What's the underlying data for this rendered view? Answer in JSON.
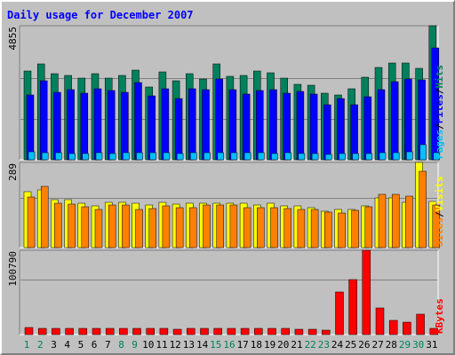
{
  "title": "Daily usage for December 2007",
  "colors": {
    "pages": "#00c0ff",
    "files": "#0000ff",
    "hits": "#00805c",
    "sites": "#ff8000",
    "visits": "#ffff00",
    "kbytes": "#ff0000",
    "weekend_label": "#00805c",
    "weekday_label": "#000000"
  },
  "chart_data": {
    "type": "bar",
    "categories": [
      "1",
      "2",
      "3",
      "4",
      "5",
      "6",
      "7",
      "8",
      "9",
      "10",
      "11",
      "12",
      "13",
      "14",
      "15",
      "16",
      "17",
      "18",
      "19",
      "20",
      "21",
      "22",
      "23",
      "24",
      "25",
      "26",
      "27",
      "28",
      "29",
      "30",
      "31"
    ],
    "weekend_days": [
      "1",
      "2",
      "8",
      "9",
      "15",
      "16",
      "22",
      "23",
      "29",
      "30"
    ],
    "panels": [
      {
        "id": "usage",
        "ymax_label": "4855",
        "ylim": [
          0,
          4855
        ],
        "legend": [
          "Pages",
          "/",
          "Files",
          "/",
          "Hits"
        ],
        "series": [
          {
            "name": "Hits",
            "values": [
              3200,
              3470,
              3120,
              3060,
              2950,
              3120,
              2950,
              3070,
              3240,
              2650,
              3180,
              2850,
              3110,
              2930,
              3470,
              3030,
              3070,
              3200,
              3140,
              2970,
              2740,
              2690,
              2400,
              2340,
              2560,
              3000,
              3340,
              3500,
              3500,
              3300,
              4855
            ]
          },
          {
            "name": "Files",
            "values": [
              2340,
              2860,
              2450,
              2530,
              2410,
              2570,
              2500,
              2450,
              2810,
              2300,
              2560,
              2210,
              2560,
              2530,
              2930,
              2530,
              2380,
              2510,
              2530,
              2410,
              2460,
              2380,
              2000,
              2230,
              2000,
              2270,
              2530,
              2820,
              2930,
              2880,
              4060
            ]
          },
          {
            "name": "Pages",
            "values": [
              280,
              260,
              250,
              230,
              240,
              250,
              240,
              250,
              250,
              250,
              260,
              230,
              250,
              250,
              260,
              250,
              250,
              260,
              240,
              250,
              240,
              230,
              200,
              230,
              240,
              230,
              250,
              260,
              300,
              540,
              260
            ]
          }
        ]
      },
      {
        "id": "visitors",
        "ymax_label": "289",
        "ylim": [
          0,
          289
        ],
        "legend": [
          "Sites",
          "/",
          "Visits"
        ],
        "series": [
          {
            "name": "Visits",
            "values": [
              190,
              195,
              164,
              162,
              150,
              140,
              155,
              155,
              150,
              146,
              155,
              149,
              150,
              150,
              150,
              150,
              152,
              145,
              150,
              140,
              141,
              135,
              124,
              128,
              130,
              140,
              168,
              169,
              155,
              289,
              156
            ]
          },
          {
            "name": "Sites",
            "values": [
              172,
              207,
              151,
              149,
              138,
              128,
              145,
              144,
              128,
              132,
              142,
              136,
              135,
              145,
              145,
              145,
              135,
              135,
              135,
              133,
              130,
              128,
              120,
              118,
              125,
              137,
              180,
              180,
              175,
              260,
              146
            ]
          }
        ]
      },
      {
        "id": "kbytes",
        "ymax_label": "100790",
        "ylim": [
          0,
          100790
        ],
        "legend": [
          "KBytes"
        ],
        "series": [
          {
            "name": "KBytes",
            "values": [
              8000,
              7800,
              7600,
              7300,
              7600,
              7500,
              7000,
              7300,
              7900,
              7100,
              7700,
              6800,
              7300,
              7600,
              7900,
              7300,
              7100,
              7300,
              7300,
              6900,
              6800,
              6300,
              5700,
              50500,
              66000,
              100790,
              32000,
              16500,
              14500,
              24000,
              7900
            ]
          }
        ]
      }
    ]
  }
}
